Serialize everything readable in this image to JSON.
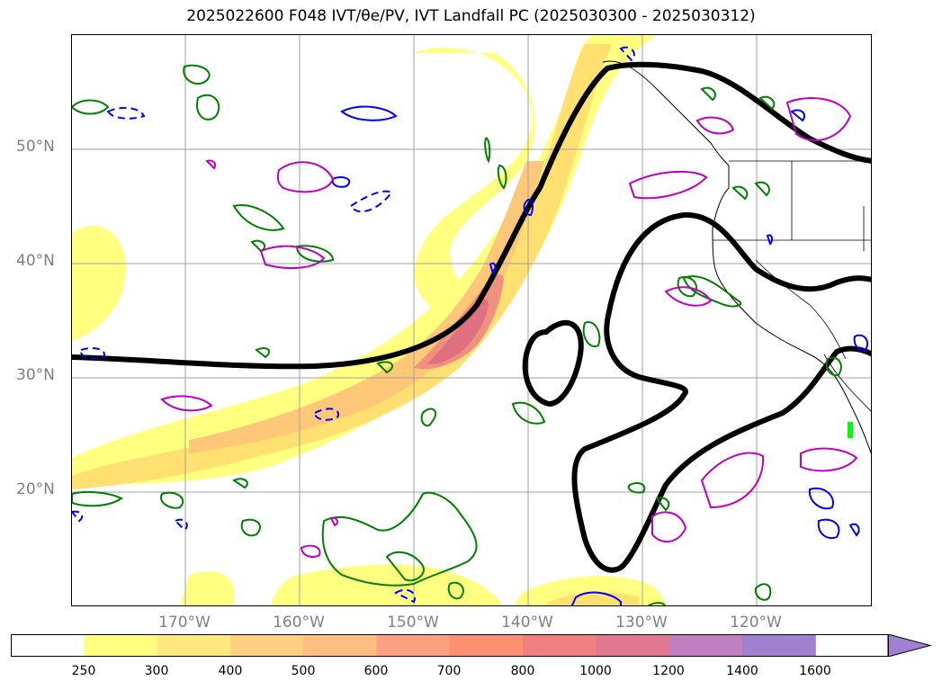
{
  "title": "2025022600 F048 IVT/θe/PV, IVT Landfall PC (2025030300 - 2025030312)",
  "lat_labels": [
    "50°N",
    "40°N",
    "30°N",
    "20°N"
  ],
  "lon_labels": [
    "170°W",
    "160°W",
    "150°W",
    "140°W",
    "130°W",
    "120°W"
  ],
  "colorbar": {
    "ticks": [
      "250",
      "300",
      "400",
      "500",
      "600",
      "700",
      "800",
      "1000",
      "1200",
      "1400",
      "1600"
    ],
    "colors": [
      "#ffffff",
      "#ffff80",
      "#ffe880",
      "#ffd080",
      "#ffbf80",
      "#ffa080",
      "#ff9070",
      "#f08080",
      "#e07890",
      "#c080c0",
      "#a080d0"
    ],
    "extend": "max"
  },
  "colors": {
    "ivt_contour": "#000000",
    "theta_e": "#008000",
    "pv_positive": "#0000ff",
    "pv_dashed": "#0000ff",
    "magenta": "#c000c0",
    "coastline": "#000000",
    "landfall_marker": "#00ff00",
    "grid": "#a0a0a0",
    "axis_label": "#808080"
  }
}
